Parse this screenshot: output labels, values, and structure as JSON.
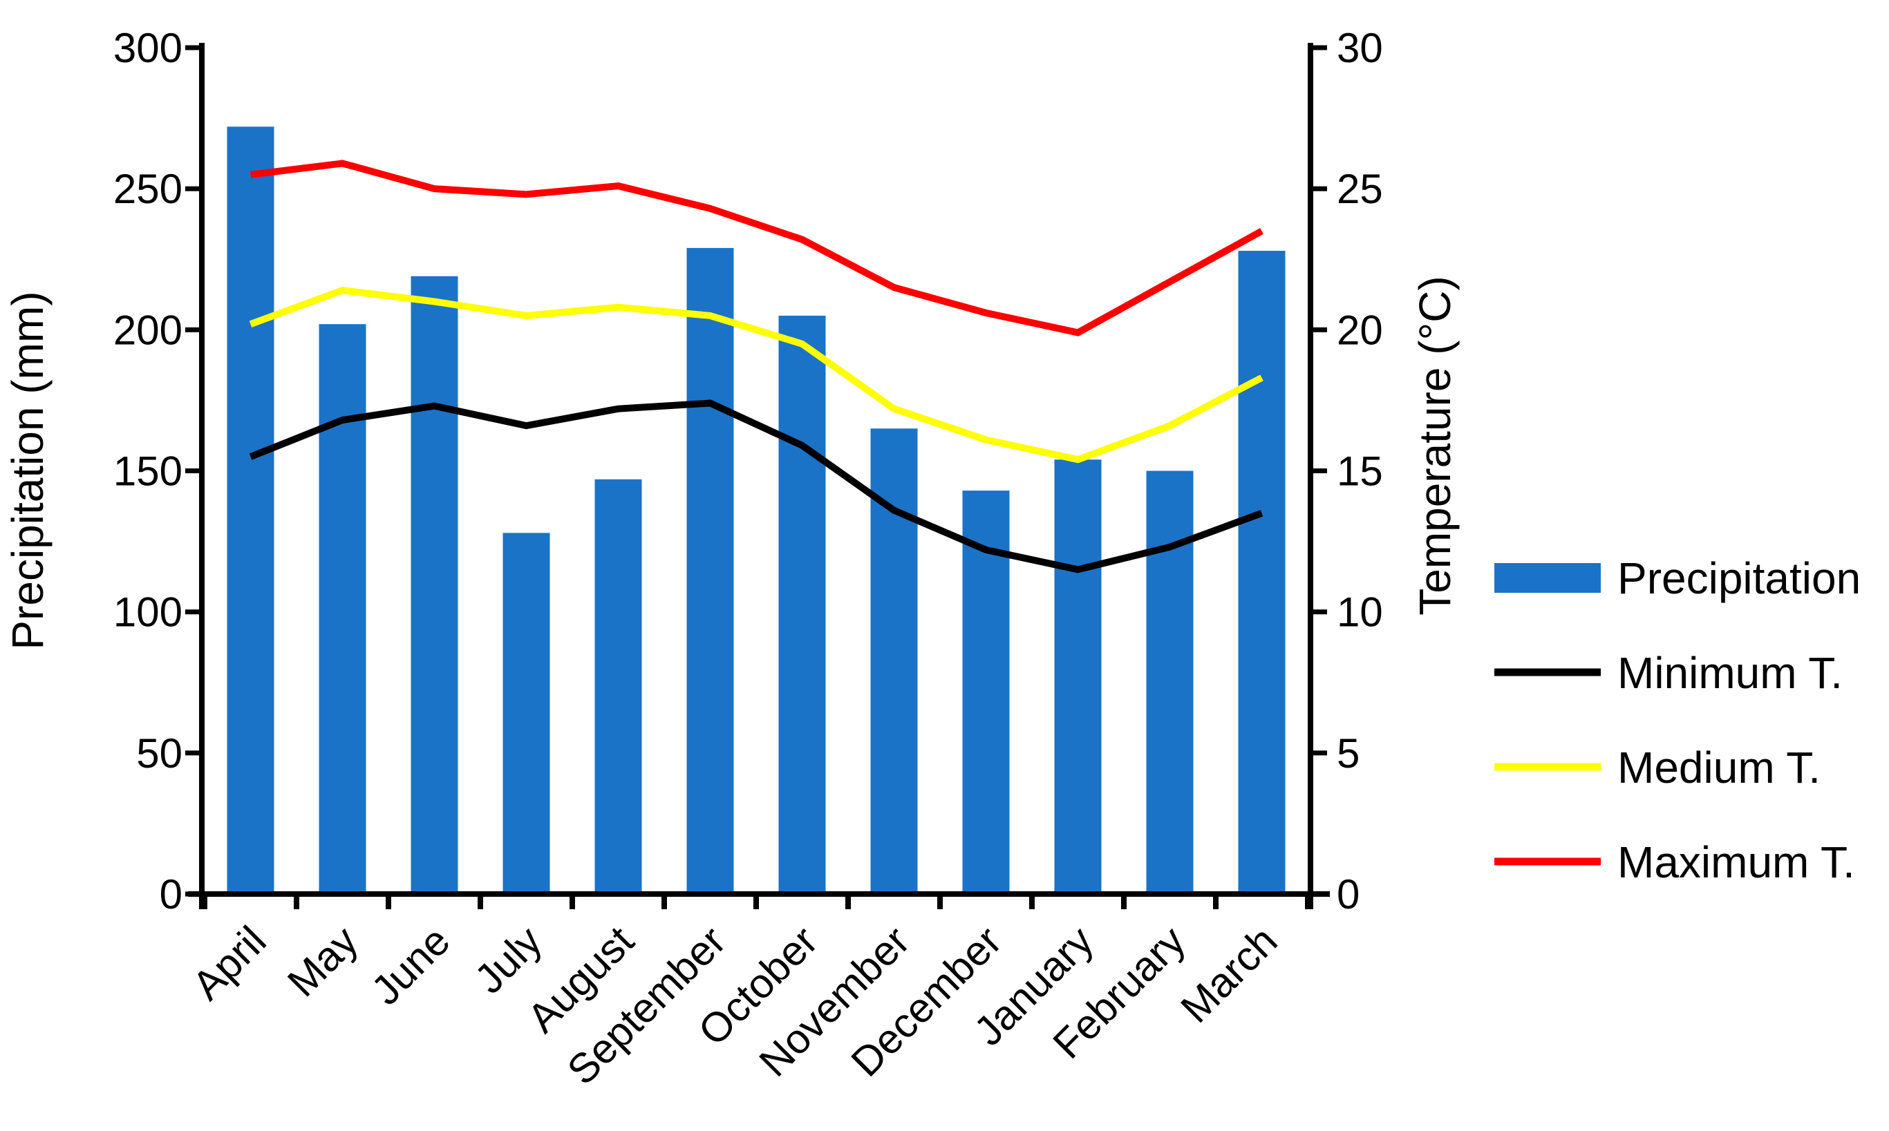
{
  "chart_data": {
    "type": "bar+line combo",
    "title": "",
    "categories": [
      "April",
      "May",
      "June",
      "July",
      "August",
      "September",
      "October",
      "November",
      "December",
      "January",
      "February",
      "March"
    ],
    "series": [
      {
        "name": "Precipitation",
        "type": "bar",
        "axis": "left",
        "color": "#1B73C8",
        "values": [
          272,
          202,
          219,
          128,
          147,
          229,
          205,
          165,
          143,
          154,
          150,
          228
        ]
      },
      {
        "name": "Minimum T.",
        "type": "line",
        "axis": "right",
        "color": "#000000",
        "values": [
          15.5,
          16.8,
          17.3,
          16.6,
          17.2,
          17.4,
          15.9,
          13.6,
          12.2,
          11.5,
          12.3,
          13.5
        ]
      },
      {
        "name": "Medium T.",
        "type": "line",
        "axis": "right",
        "color": "#FFFF00",
        "values": [
          20.2,
          21.4,
          21.0,
          20.5,
          20.8,
          20.5,
          19.5,
          17.2,
          16.1,
          15.4,
          16.6,
          18.3
        ]
      },
      {
        "name": "Maximum T.",
        "type": "line",
        "axis": "right",
        "color": "#FF0000",
        "values": [
          25.5,
          25.9,
          25.0,
          24.8,
          25.1,
          24.3,
          23.2,
          21.5,
          20.6,
          19.9,
          21.7,
          23.5
        ]
      }
    ],
    "left_axis": {
      "label": "Precipitation (mm)",
      "min": 0,
      "max": 300,
      "tick_step": 50,
      "ticks": [
        0,
        50,
        100,
        150,
        200,
        250,
        300
      ]
    },
    "right_axis": {
      "label": "Temperature (°C)",
      "min": 0,
      "max": 30,
      "tick_step": 5,
      "ticks": [
        0,
        5,
        10,
        15,
        20,
        25,
        30
      ]
    },
    "grid": false,
    "legend_position": "right"
  },
  "legend": {
    "items": [
      {
        "label": "Precipitation",
        "swatch": "bar",
        "color": "#1B73C8"
      },
      {
        "label": "Minimum T.",
        "swatch": "line",
        "color": "#000000"
      },
      {
        "label": "Medium T.",
        "swatch": "line",
        "color": "#FFFF00"
      },
      {
        "label": "Maximum T.",
        "swatch": "line",
        "color": "#FF0000"
      }
    ]
  },
  "colors": {
    "axis": "#000000",
    "background": "#FFFFFF",
    "bar_blue": "#1B73C8",
    "line_red": "#FF0000",
    "line_yellow": "#FFFF00",
    "line_black": "#000000"
  }
}
